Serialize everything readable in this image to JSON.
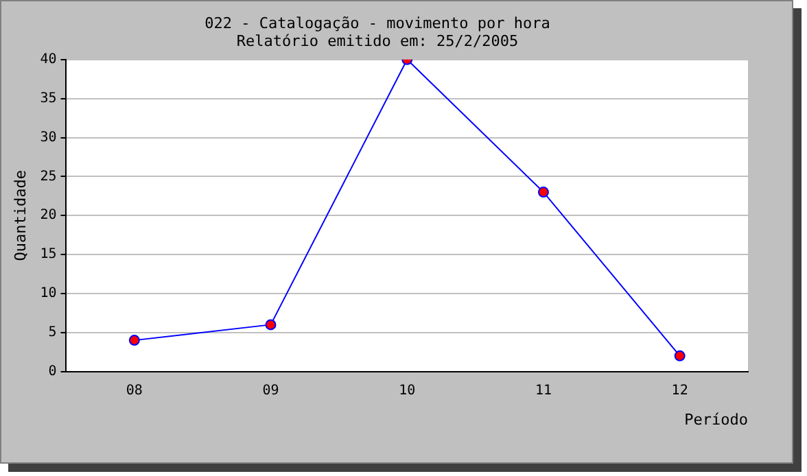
{
  "chart_data": {
    "type": "line",
    "title": "022 - Catalogação - movimento por hora",
    "subtitle": "Relatório emitido em: 25/2/2005",
    "xlabel": "Período",
    "ylabel": "Quantidade",
    "categories": [
      "08",
      "09",
      "10",
      "11",
      "12"
    ],
    "series": [
      {
        "color": "#0000ff",
        "values": [
          4,
          6,
          40,
          23,
          2
        ]
      }
    ],
    "ylim": [
      0,
      40
    ],
    "yticks": [
      0,
      5,
      10,
      15,
      20,
      25,
      30,
      35,
      40
    ],
    "grid": "y",
    "legend": false,
    "marker": "circle",
    "line_style": "solid"
  }
}
